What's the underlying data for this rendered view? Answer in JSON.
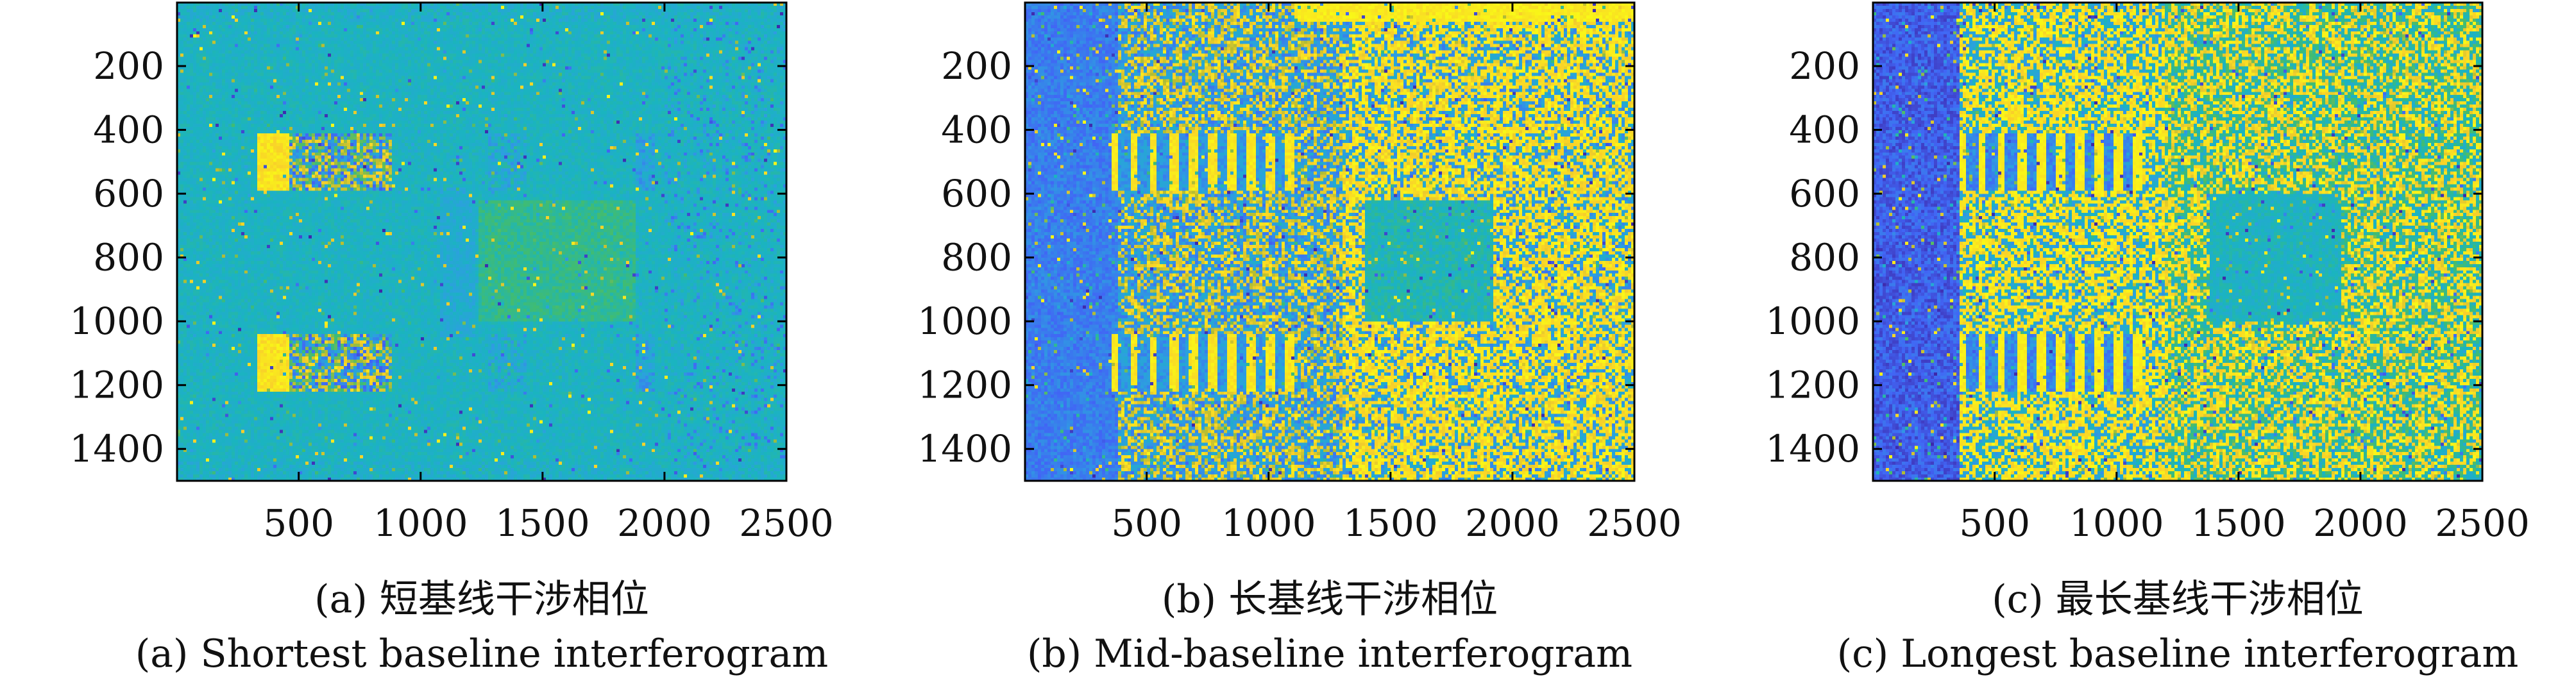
{
  "figure": {
    "captions_cn": [
      "(a) 短基线干涉相位",
      "(b) 长基线干涉相位",
      "(c) 最长基线干涉相位"
    ],
    "captions_en": [
      "(a) Shortest baseline interferogram",
      "(b) Mid-baseline interferogram",
      "(c) Longest baseline interferogram"
    ]
  },
  "colors": {
    "colormap": [
      "#3e26a8",
      "#4166f5",
      "#2d9fe0",
      "#1ab4c0",
      "#40bc72",
      "#b6bd32",
      "#f9d02a",
      "#f9fb15"
    ],
    "axis": "#000000"
  },
  "chart_data": [
    {
      "type": "heatmap",
      "title": "",
      "caption_cn": "(a) 短基线干涉相位",
      "caption_en": "(a) Shortest baseline interferogram",
      "xlabel": "",
      "ylabel": "",
      "xlim": [
        1,
        2500
      ],
      "ylim": [
        1,
        1500
      ],
      "y_reversed": true,
      "xticks": [
        500,
        1000,
        1500,
        2000,
        2500
      ],
      "yticks": [
        200,
        400,
        600,
        800,
        1000,
        1200,
        1400
      ],
      "grid": false,
      "colorbar": false,
      "style": "short"
    },
    {
      "type": "heatmap",
      "title": "",
      "caption_cn": "(b) 长基线干涉相位",
      "caption_en": "(b) Mid-baseline interferogram",
      "xlabel": "",
      "ylabel": "",
      "xlim": [
        1,
        2500
      ],
      "ylim": [
        1,
        1500
      ],
      "y_reversed": true,
      "xticks": [
        500,
        1000,
        1500,
        2000,
        2500
      ],
      "yticks": [
        200,
        400,
        600,
        800,
        1000,
        1200,
        1400
      ],
      "grid": false,
      "colorbar": false,
      "style": "mid"
    },
    {
      "type": "heatmap",
      "title": "",
      "caption_cn": "(c) 最长基线干涉相位",
      "caption_en": "(c) Longest baseline interferogram",
      "xlabel": "",
      "ylabel": "",
      "xlim": [
        1,
        2500
      ],
      "ylim": [
        1,
        1500
      ],
      "y_reversed": true,
      "xticks": [
        500,
        1000,
        1500,
        2000,
        2500
      ],
      "yticks": [
        200,
        400,
        600,
        800,
        1000,
        1200,
        1400
      ],
      "grid": false,
      "colorbar": false,
      "style": "long"
    }
  ]
}
